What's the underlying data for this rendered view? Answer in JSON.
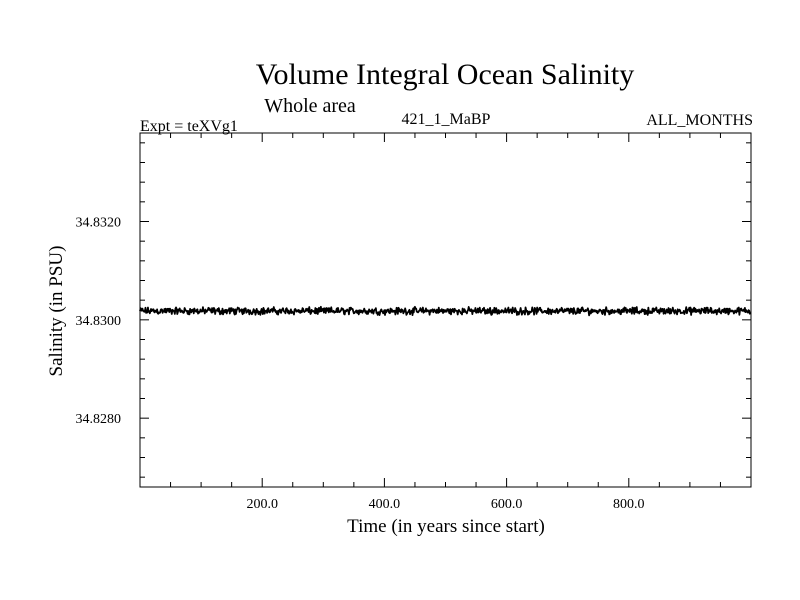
{
  "chart_data": {
    "type": "line",
    "title": "Volume Integral Ocean Salinity",
    "subtitle": "Whole area",
    "header_left": "Expt = teXVg1",
    "header_center": "421_1_MaBP",
    "header_right": "ALL_MONTHS",
    "xlabel": "Time (in years since start)",
    "ylabel": "Salinity (in PSU)",
    "xlim": [
      0,
      1000
    ],
    "ylim": [
      34.8266,
      34.8338
    ],
    "x_tick_labels": [
      "200.0",
      "400.0",
      "600.0",
      "800.0"
    ],
    "x_tick_values": [
      200,
      400,
      600,
      800
    ],
    "y_tick_labels": [
      "34.8280",
      "34.8300",
      "34.8320"
    ],
    "y_tick_values": [
      34.828,
      34.83,
      34.832
    ],
    "grid": false,
    "series": [
      {
        "name": "Salinity",
        "color": "#000000",
        "x_start": 0,
        "x_step": 1,
        "mean": 34.83018,
        "noise_amplitude": 9e-05,
        "count": 1000
      }
    ]
  }
}
